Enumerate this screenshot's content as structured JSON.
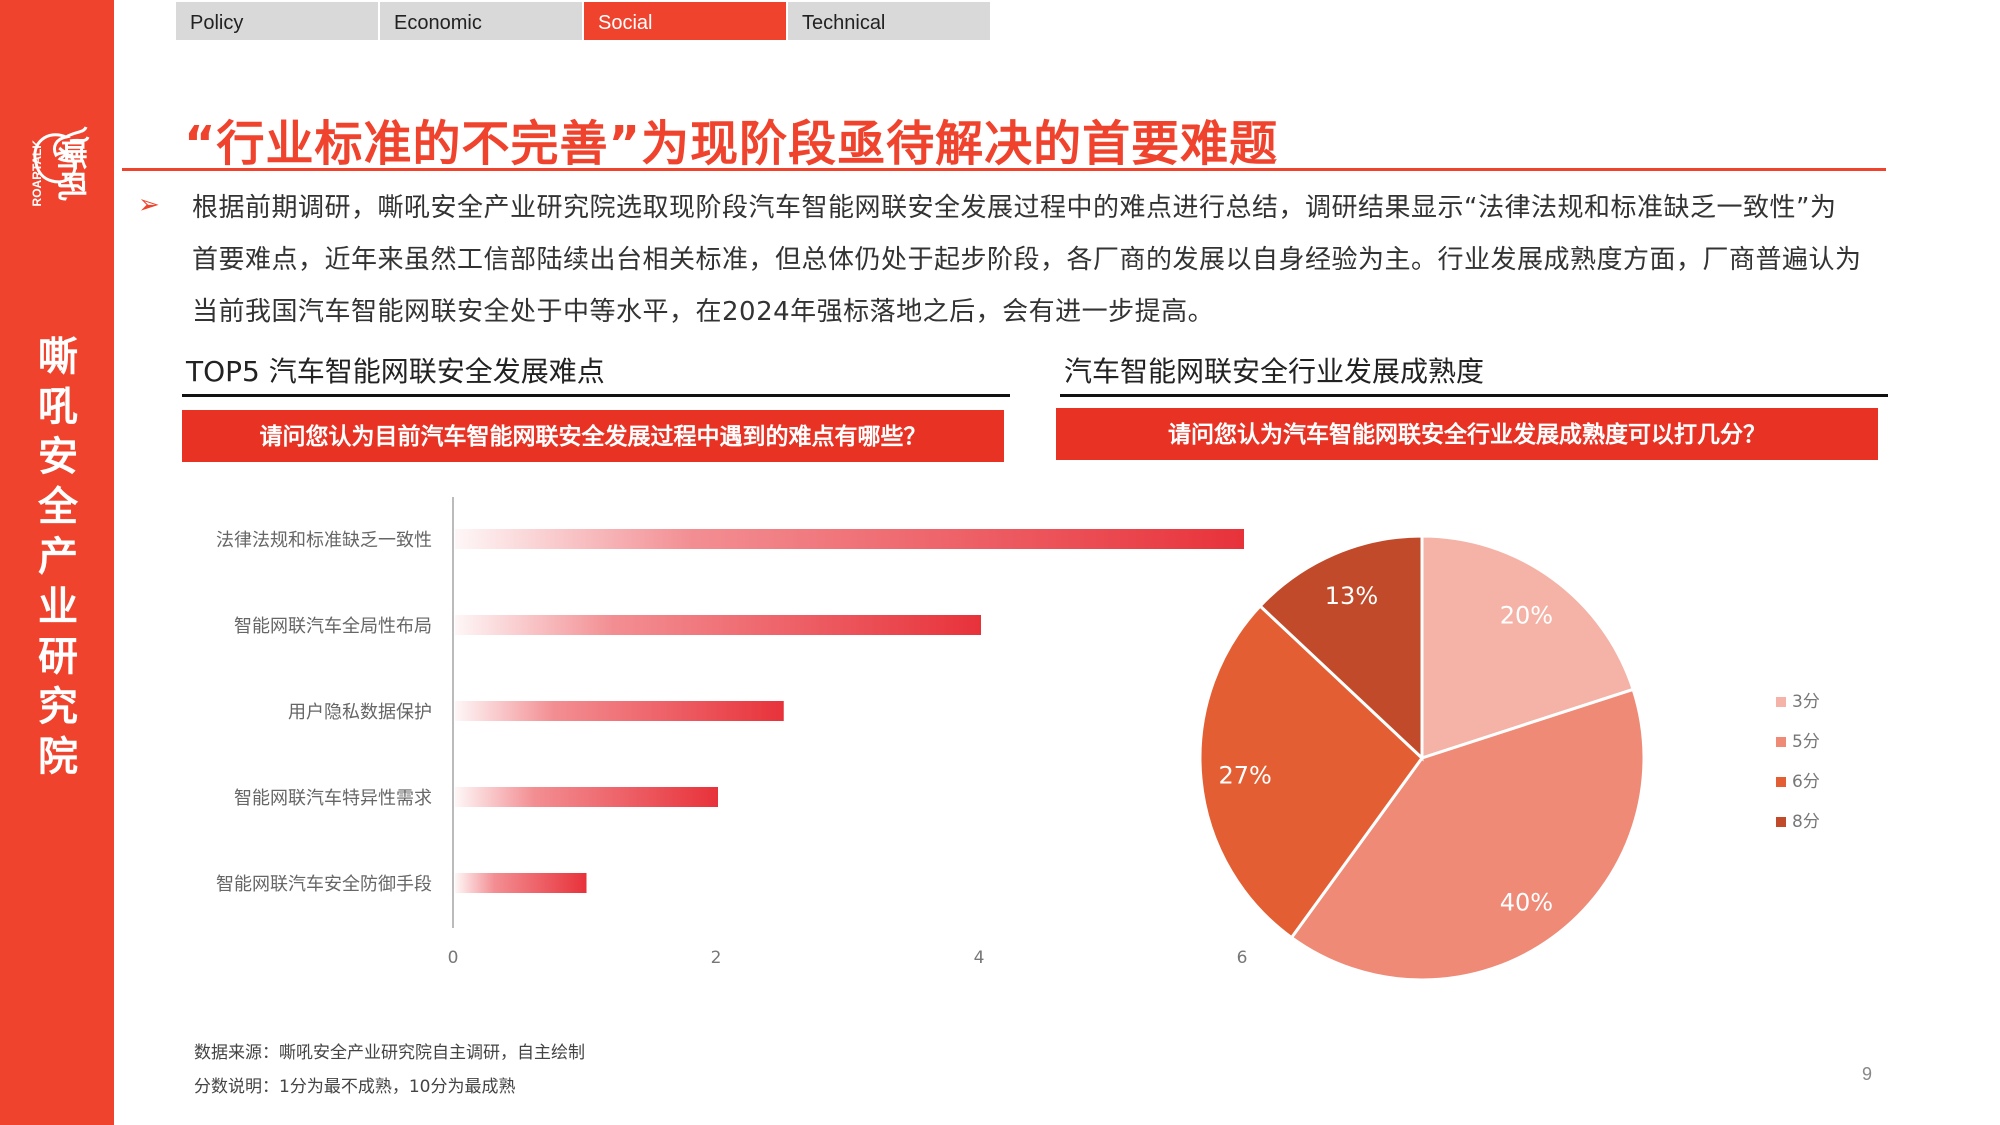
{
  "tabs": [
    {
      "label": "Policy",
      "active": false
    },
    {
      "label": "Economic",
      "active": false
    },
    {
      "label": "Social",
      "active": true
    },
    {
      "label": "Technical",
      "active": false
    }
  ],
  "brand": {
    "logo_text": "嘶吼",
    "logo_sub": "ROARTALK",
    "side_title": "嘶吼安全产业研究院"
  },
  "title": "“行业标准的不完善”为现阶段亟待解决的首要难题",
  "paragraph": "根据前期调研，嘶吼安全产业研究院选取现阶段汽车智能网联安全发展过程中的难点进行总结，调研结果显示“法律法规和标准缺乏一致性”为首要难点，近年来虽然工信部陆续出台相关标准，但总体仍处于起步阶段，各厂商的发展以自身经验为主。行业发展成熟度方面，厂商普遍认为当前我国汽车智能网联安全处于中等水平，在2024年强标落地之后，会有进一步提高。",
  "left_section": {
    "title": "TOP5 汽车智能网联安全发展难点",
    "banner": "请问您认为目前汽车智能网联安全发展过程中遇到的难点有哪些？"
  },
  "right_section": {
    "title": "汽车智能网联安全行业发展成熟度",
    "banner": "请问您认为汽车智能网联安全行业发展成熟度可以打几分？"
  },
  "chart_data": [
    {
      "type": "bar",
      "orientation": "horizontal",
      "categories": [
        "法律法规和标准缺乏一致性",
        "智能网联汽车全局性布局",
        "用户隐私数据保护",
        "智能网联汽车特异性需求",
        "智能网联汽车安全防御手段"
      ],
      "values": [
        6,
        4,
        2.5,
        2,
        1
      ],
      "xlim": [
        0,
        8
      ],
      "xticks": [
        "0",
        "2",
        "4",
        "6",
        "8"
      ],
      "color": "#e8323a",
      "grid": false
    },
    {
      "type": "pie",
      "labels": [
        "3分",
        "5分",
        "6分",
        "8分"
      ],
      "values": [
        20,
        40,
        27,
        13
      ],
      "value_labels": [
        "20%",
        "40%",
        "27%",
        "13%"
      ],
      "colors": [
        "#f4b3a6",
        "#ef8a77",
        "#e35f33",
        "#c04a2a"
      ],
      "legend": "right"
    }
  ],
  "footer": {
    "source": "数据来源：嘶吼安全产业研究院自主调研，自主绘制",
    "note": "分数说明：1分为最不成熟，10分为最成熟"
  },
  "page_number": "9"
}
